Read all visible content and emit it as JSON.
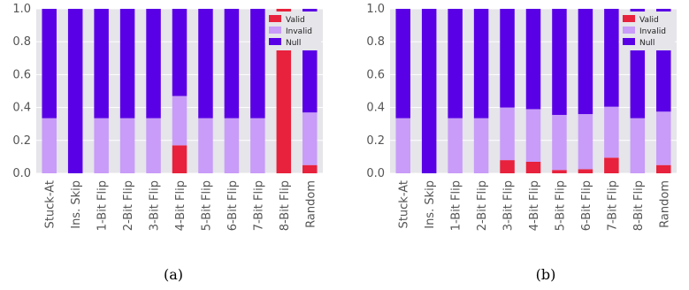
{
  "chart_data": [
    {
      "type": "bar",
      "stacked": true,
      "caption": "(a)",
      "categories": [
        "Stuck-At",
        "Ins. Skip",
        "1-Bit Flip",
        "2-Bit Flip",
        "3-Bit Flip",
        "4-Bit Flip",
        "5-Bit Flip",
        "6-Bit Flip",
        "7-Bit Flip",
        "8-Bit Flip",
        "Random"
      ],
      "series": [
        {
          "name": "Valid",
          "color": "#e8213c",
          "values": [
            0,
            0,
            0,
            0,
            0,
            0.17,
            0,
            0,
            0,
            1.0,
            0.05
          ]
        },
        {
          "name": "Invalid",
          "color": "#c89cf8",
          "values": [
            0.335,
            0,
            0.335,
            0.335,
            0.335,
            0.3,
            0.335,
            0.335,
            0.335,
            0,
            0.32
          ]
        },
        {
          "name": "Null",
          "color": "#5a00e6",
          "values": [
            0.665,
            1.0,
            0.665,
            0.665,
            0.665,
            0.53,
            0.665,
            0.665,
            0.665,
            0,
            0.63
          ]
        }
      ],
      "ylim": [
        0,
        1.0
      ],
      "yticks": [
        "0.0",
        "0.2",
        "0.4",
        "0.6",
        "0.8",
        "1.0"
      ],
      "legend": "top-right",
      "grid": true
    },
    {
      "type": "bar",
      "stacked": true,
      "caption": "(b)",
      "categories": [
        "Stuck-At",
        "Ins. Skip",
        "1-Bit Flip",
        "2-Bit Flip",
        "3-Bit Flip",
        "4-Bit Flip",
        "5-Bit Flip",
        "6-Bit Flip",
        "7-Bit Flip",
        "8-Bit Flip",
        "Random"
      ],
      "series": [
        {
          "name": "Valid",
          "color": "#e8213c",
          "values": [
            0,
            0,
            0,
            0,
            0.08,
            0.07,
            0.02,
            0.025,
            0.095,
            0,
            0.05
          ]
        },
        {
          "name": "Invalid",
          "color": "#c89cf8",
          "values": [
            0.335,
            0,
            0.335,
            0.335,
            0.32,
            0.32,
            0.335,
            0.335,
            0.31,
            0.335,
            0.325
          ]
        },
        {
          "name": "Null",
          "color": "#5a00e6",
          "values": [
            0.665,
            1.0,
            0.665,
            0.665,
            0.6,
            0.61,
            0.645,
            0.64,
            0.595,
            0.665,
            0.625
          ]
        }
      ],
      "ylim": [
        0,
        1.0
      ],
      "yticks": [
        "0.0",
        "0.2",
        "0.4",
        "0.6",
        "0.8",
        "1.0"
      ],
      "legend": "top-right",
      "grid": true
    }
  ]
}
